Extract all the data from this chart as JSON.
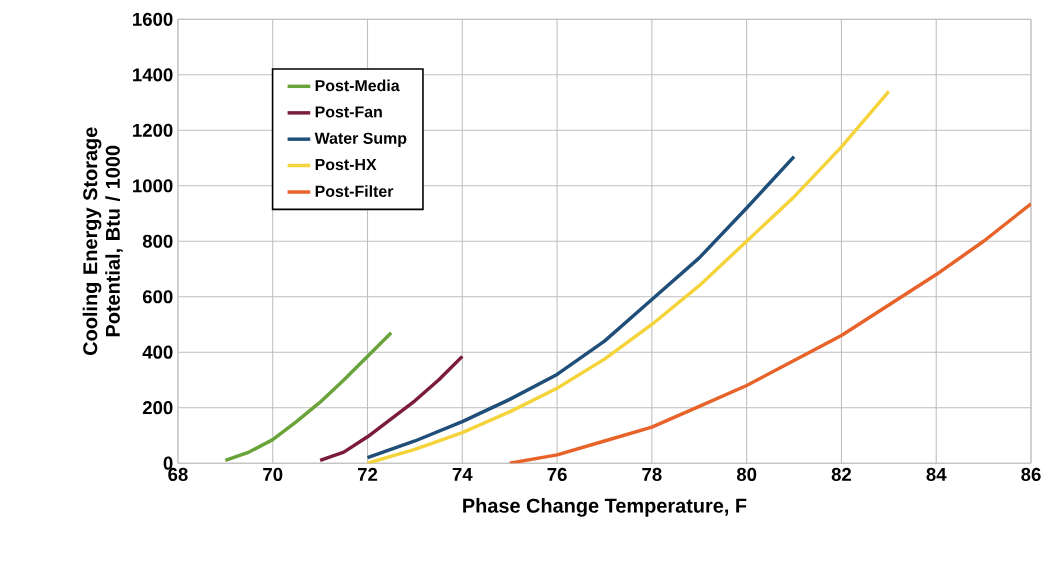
{
  "chart_data": {
    "type": "line",
    "xlabel": "Phase Change Temperature, F",
    "ylabel": "Cooling Energy Storage Potential, Btu / 1000",
    "xlim": [
      68,
      86
    ],
    "xticks": [
      68,
      70,
      72,
      74,
      76,
      78,
      80,
      82,
      84,
      86
    ],
    "ylim": [
      0,
      1600
    ],
    "yticks": [
      0,
      200,
      400,
      600,
      800,
      1000,
      1200,
      1400,
      1600
    ],
    "grid": true,
    "legend": "top left",
    "marker": "none",
    "series": [
      {
        "name": "Post-Media",
        "color": "#6aa339",
        "x": [
          69,
          69.5,
          70,
          70.5,
          71,
          71.5,
          72,
          72.5
        ],
        "values": [
          10,
          40,
          85,
          150,
          220,
          300,
          385,
          470
        ]
      },
      {
        "name": "Post-Fan",
        "color": "#7b1c3a",
        "x": [
          71,
          71.5,
          72,
          72.5,
          73,
          73.5,
          74
        ],
        "values": [
          10,
          40,
          95,
          160,
          225,
          300,
          385
        ]
      },
      {
        "name": "Water Sump",
        "color": "#1f4e79",
        "x": [
          72,
          73,
          74,
          75,
          76,
          77,
          78,
          79,
          80,
          81
        ],
        "values": [
          20,
          80,
          150,
          230,
          320,
          440,
          590,
          740,
          920,
          1105
        ]
      },
      {
        "name": "Post-HX",
        "color": "#f5d33a",
        "x": [
          72,
          73,
          74,
          75,
          76,
          77,
          78,
          79,
          80,
          81,
          82,
          83
        ],
        "values": [
          0,
          50,
          110,
          185,
          270,
          375,
          500,
          640,
          800,
          960,
          1140,
          1340
        ]
      },
      {
        "name": "Post-Filter",
        "color": "#e8632a",
        "x": [
          75,
          76,
          77,
          78,
          79,
          80,
          81,
          82,
          83,
          84,
          85,
          86
        ],
        "values": [
          0,
          30,
          80,
          130,
          205,
          280,
          370,
          460,
          570,
          680,
          800,
          935
        ]
      }
    ]
  }
}
